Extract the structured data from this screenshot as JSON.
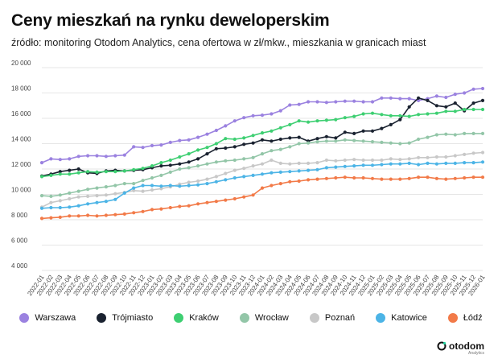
{
  "title": "Ceny mieszkań na rynku deweloperskim",
  "subtitle": "źródło: monitoring Otodom Analytics, cena ofertowa w zł/mkw., mieszkania w granicach miast",
  "logo": {
    "text": "otodom",
    "sub": "Analytics"
  },
  "chart_data": {
    "type": "line",
    "title": "Ceny mieszkań na rynku deweloperskim",
    "ylim": [
      4000,
      20000
    ],
    "yticks": [
      4000,
      6000,
      8000,
      10000,
      12000,
      14000,
      16000,
      18000,
      20000
    ],
    "ytick_labels": [
      "4 000",
      "6 000",
      "8 000",
      "10 000",
      "12 000",
      "14 000",
      "16 000",
      "18 000",
      "20 000"
    ],
    "grid": true,
    "legend_position": "bottom",
    "x": [
      "2022-01",
      "2022-02",
      "2022-03",
      "2022-04",
      "2022-05",
      "2022-06",
      "2022-07",
      "2022-08",
      "2022-09",
      "2022-10",
      "2022-11",
      "2022-12",
      "2023-01",
      "2023-02",
      "2023-03",
      "2023-04",
      "2023-05",
      "2023-06",
      "2023-07",
      "2023-08",
      "2023-09",
      "2023-10",
      "2023-11",
      "2023-12",
      "2024-01",
      "2024-02",
      "2024-03",
      "2024-04",
      "2024-05",
      "2024-06",
      "2024-07",
      "2024-08",
      "2024-09",
      "2024-10",
      "2024-11",
      "2024-12",
      "2025-01",
      "2025-02",
      "2025-03",
      "2025-04",
      "2025-05",
      "2025-06",
      "2025-07",
      "2025-08",
      "2025-09",
      "2025-10",
      "2025-11",
      "2025-12",
      "2026-01"
    ],
    "series": [
      {
        "name": "Warszawa",
        "color": "#9b82e0",
        "values": [
          12500,
          12800,
          12750,
          12800,
          13000,
          13050,
          13050,
          13000,
          13050,
          13100,
          13750,
          13700,
          13850,
          13900,
          14100,
          14250,
          14300,
          14500,
          14750,
          15050,
          15400,
          15800,
          16050,
          16200,
          16250,
          16350,
          16600,
          17050,
          17100,
          17300,
          17300,
          17250,
          17300,
          17350,
          17350,
          17300,
          17300,
          17600,
          17600,
          17550,
          17550,
          17400,
          17550,
          17750,
          17650,
          17900,
          18000,
          18300,
          18350
        ]
      },
      {
        "name": "Trójmiasto",
        "color": "#1a2230",
        "values": [
          11450,
          11600,
          11800,
          11900,
          12000,
          11700,
          11650,
          11850,
          11900,
          11850,
          11900,
          11950,
          12100,
          12250,
          12300,
          12400,
          12550,
          12800,
          13200,
          13600,
          13650,
          13750,
          13950,
          14050,
          14300,
          14200,
          14350,
          14450,
          14500,
          14200,
          14400,
          14550,
          14450,
          14900,
          14800,
          15000,
          15000,
          15200,
          15500,
          15900,
          16900,
          17600,
          17400,
          17000,
          16900,
          17200,
          16600,
          17200,
          17400
        ]
      },
      {
        "name": "Kraków",
        "color": "#3ecf72",
        "values": [
          11400,
          11500,
          11600,
          11600,
          11700,
          11800,
          11750,
          11800,
          11800,
          11850,
          11950,
          12050,
          12250,
          12500,
          12700,
          12950,
          13200,
          13500,
          13700,
          14000,
          14400,
          14350,
          14450,
          14650,
          14850,
          15000,
          15250,
          15500,
          15800,
          15700,
          15800,
          15850,
          15900,
          16050,
          16150,
          16350,
          16400,
          16300,
          16200,
          16200,
          16150,
          16300,
          16350,
          16400,
          16550,
          16550,
          16700,
          16700,
          16700
        ]
      },
      {
        "name": "Wrocław",
        "color": "#93c6a8",
        "values": [
          9900,
          9850,
          9950,
          10100,
          10250,
          10400,
          10500,
          10600,
          10700,
          10850,
          10850,
          11100,
          11300,
          11500,
          11750,
          12000,
          12100,
          12250,
          12400,
          12550,
          12650,
          12700,
          12800,
          12900,
          13200,
          13450,
          13550,
          13750,
          14000,
          14050,
          14150,
          14200,
          14200,
          14300,
          14250,
          14200,
          14150,
          14100,
          14050,
          14000,
          14050,
          14350,
          14500,
          14700,
          14750,
          14700,
          14800,
          14800,
          14800
        ]
      },
      {
        "name": "Poznań",
        "color": "#c8c8c8",
        "values": [
          9000,
          9350,
          9500,
          9650,
          9800,
          9850,
          9900,
          9950,
          10050,
          10150,
          10300,
          10250,
          10350,
          10450,
          10600,
          10800,
          10950,
          11050,
          11200,
          11400,
          11650,
          11900,
          12050,
          12250,
          12400,
          12700,
          12450,
          12400,
          12450,
          12450,
          12500,
          12700,
          12650,
          12700,
          12750,
          12700,
          12700,
          12700,
          12800,
          12750,
          12800,
          12900,
          12900,
          12950,
          12950,
          13050,
          13150,
          13250,
          13300
        ]
      },
      {
        "name": "Katowice",
        "color": "#4cb4e6",
        "values": [
          8900,
          8950,
          8950,
          9000,
          9100,
          9250,
          9350,
          9450,
          9600,
          10100,
          10500,
          10700,
          10700,
          10650,
          10700,
          10650,
          10700,
          10750,
          10850,
          11000,
          11150,
          11300,
          11400,
          11500,
          11600,
          11700,
          11750,
          11800,
          11850,
          11900,
          11950,
          12100,
          12150,
          12200,
          12250,
          12300,
          12300,
          12350,
          12400,
          12400,
          12450,
          12350,
          12450,
          12400,
          12450,
          12450,
          12500,
          12500,
          12550
        ]
      },
      {
        "name": "Łódź",
        "color": "#f27a48",
        "values": [
          8100,
          8150,
          8200,
          8300,
          8300,
          8350,
          8300,
          8350,
          8400,
          8450,
          8550,
          8650,
          8800,
          8850,
          8950,
          9050,
          9100,
          9250,
          9350,
          9450,
          9550,
          9650,
          9800,
          9950,
          10500,
          10700,
          10850,
          11000,
          11050,
          11150,
          11200,
          11250,
          11300,
          11350,
          11300,
          11300,
          11250,
          11200,
          11200,
          11200,
          11250,
          11350,
          11350,
          11250,
          11200,
          11250,
          11300,
          11350,
          11350
        ]
      }
    ]
  }
}
